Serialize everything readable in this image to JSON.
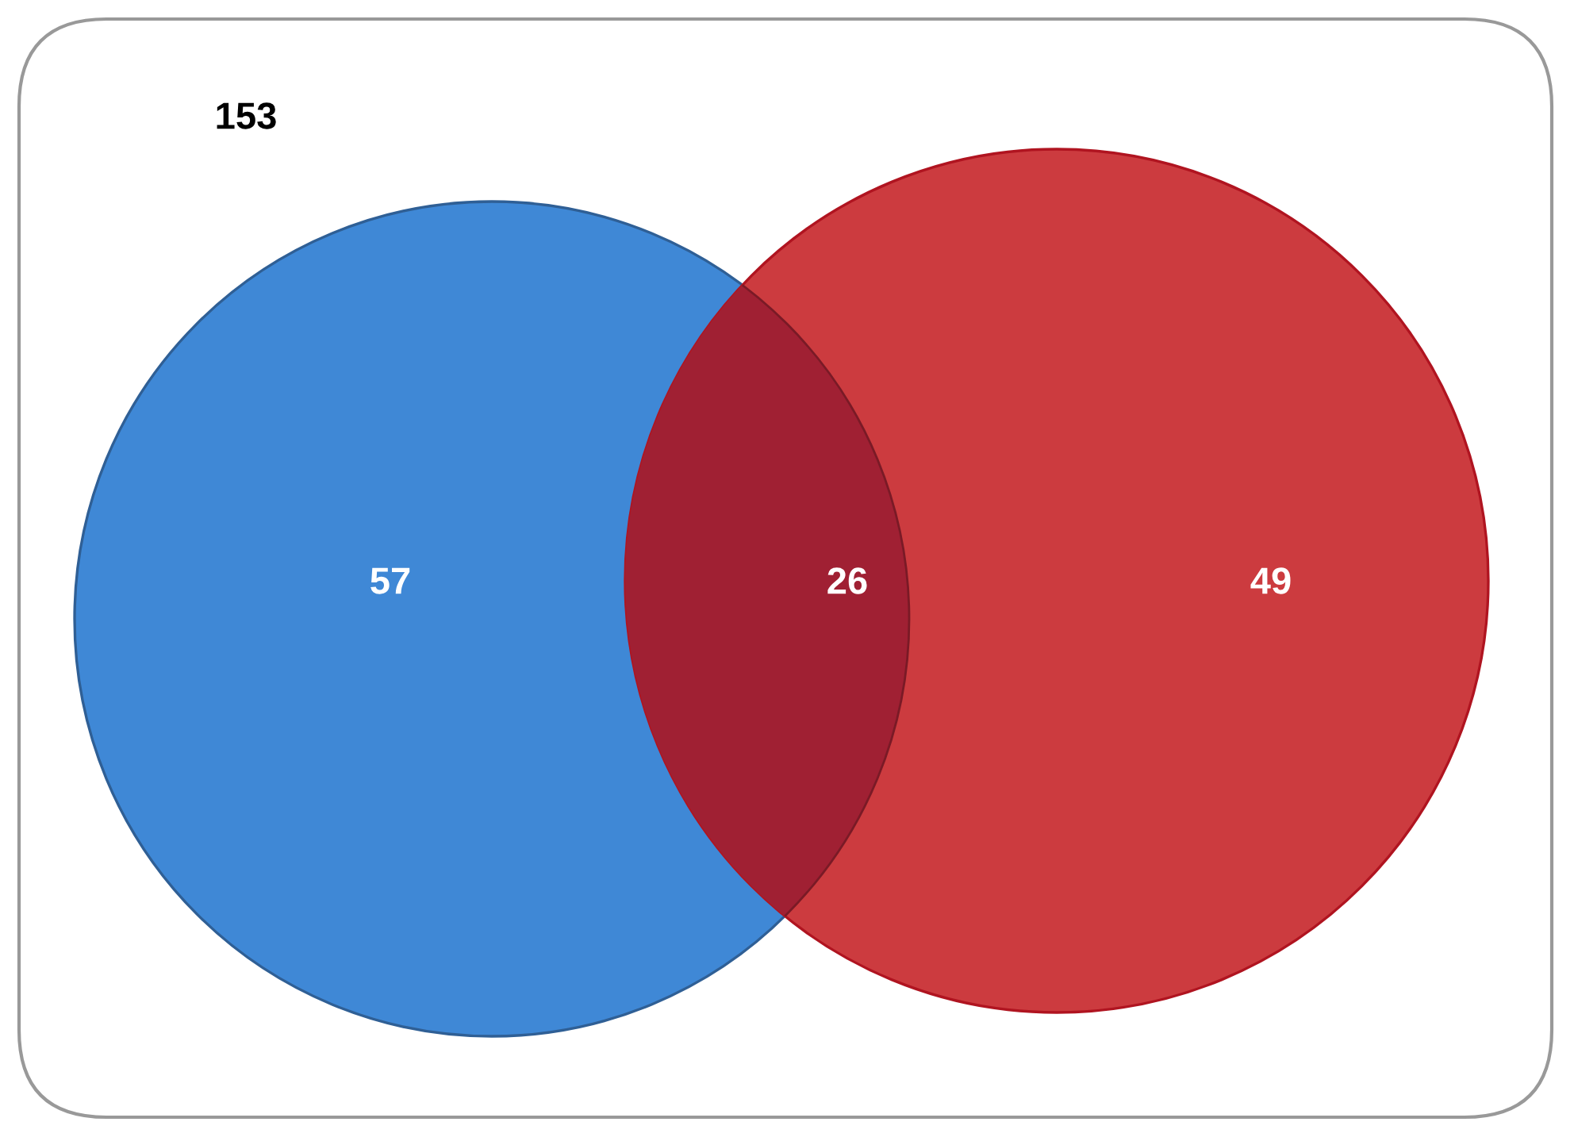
{
  "chart_data": {
    "type": "other",
    "categories": [
      null,
      null,
      null,
      null
    ],
    "values": [
      153,
      57,
      26,
      49
    ],
    "colors": [
      "#ffffff",
      "#3f88d6",
      "#a02033",
      "#cc3b3f"
    ],
    "data_labels": true
  }
}
